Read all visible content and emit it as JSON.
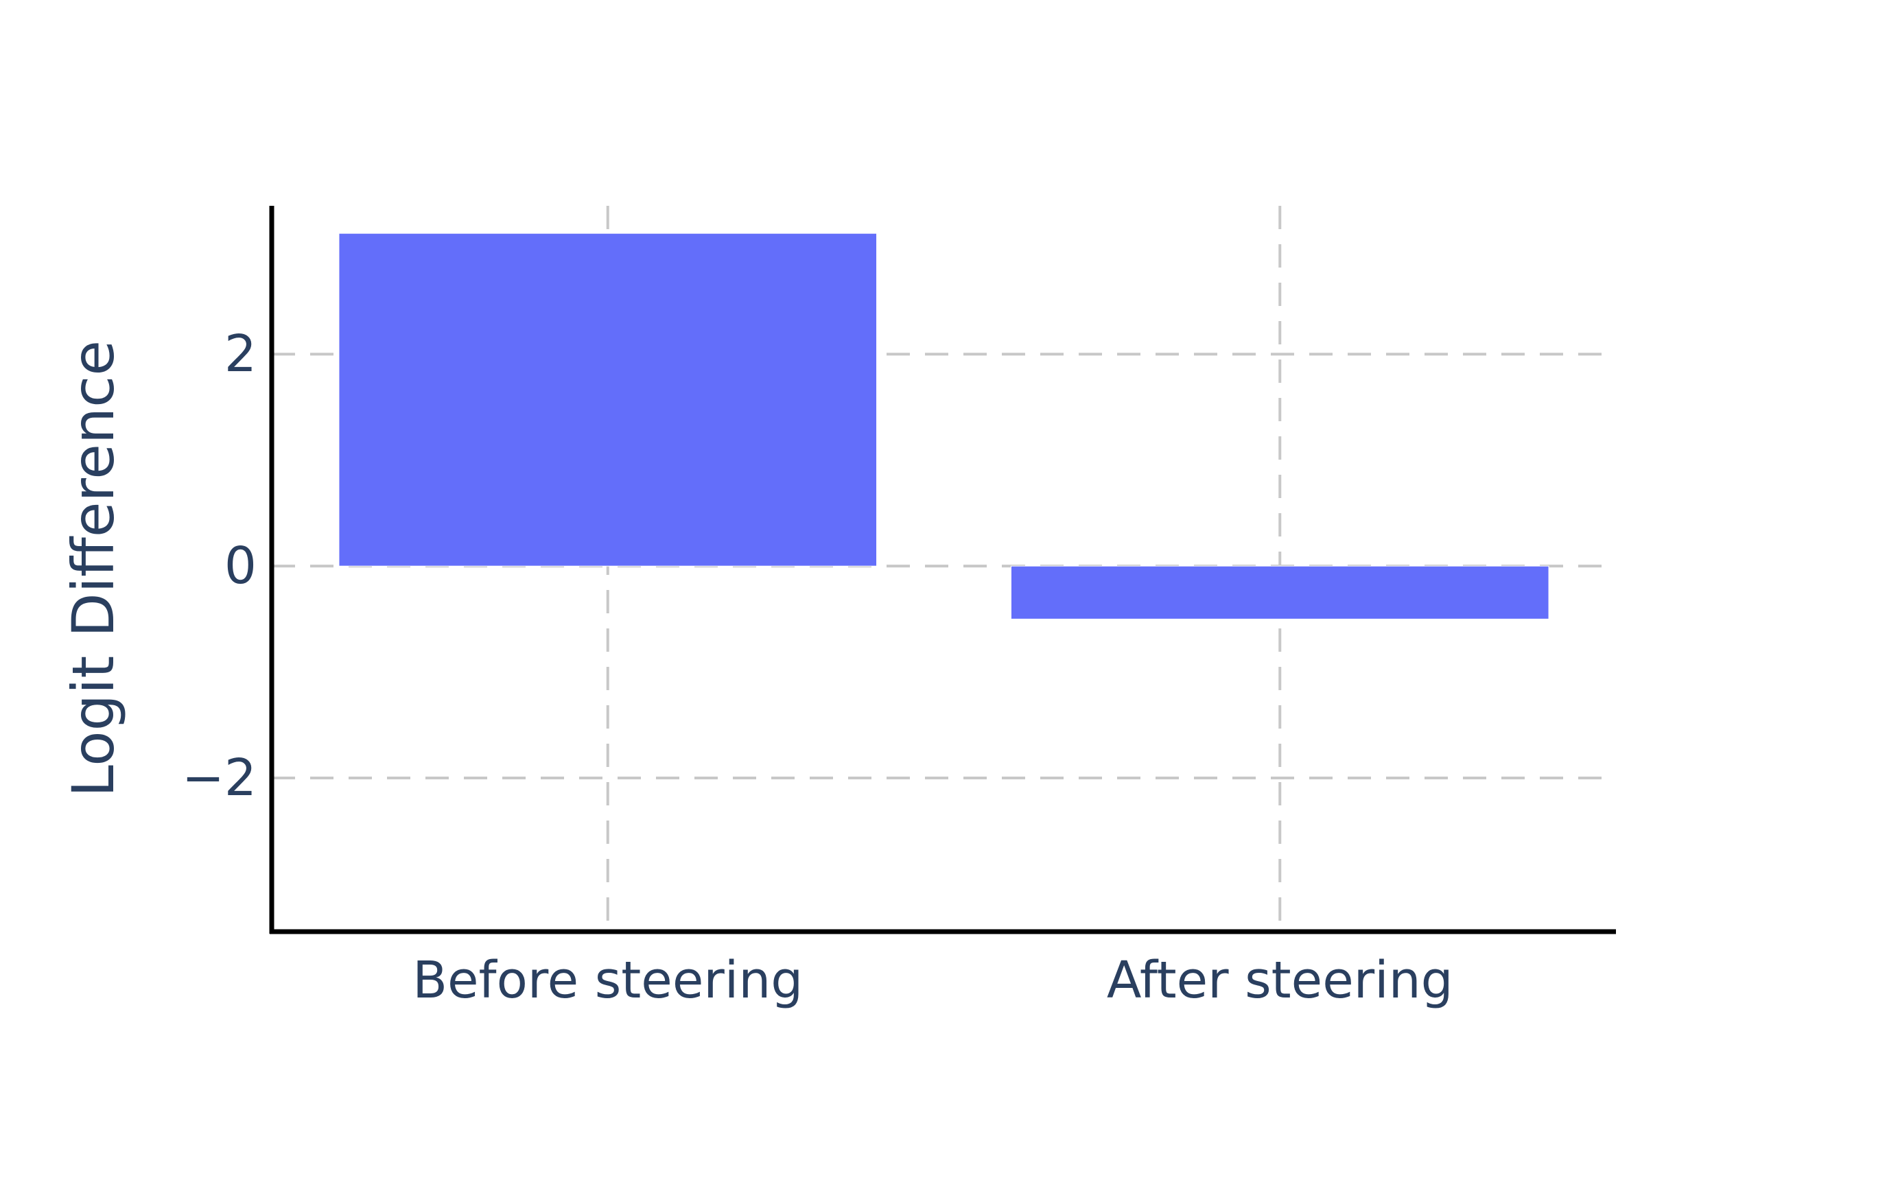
{
  "chart_data": {
    "type": "bar",
    "title": "",
    "xlabel": "",
    "ylabel": "Logit Difference",
    "categories": [
      "Before steering",
      "After steering"
    ],
    "values": [
      3.14,
      -0.5
    ],
    "ylim": [
      -3.45,
      3.4
    ],
    "yticks": [
      -2,
      0,
      2
    ],
    "ytick_labels": [
      "−2",
      "0",
      "2"
    ],
    "grid": true,
    "legend": "none"
  },
  "colors": {
    "bar": "#636efa",
    "text": "#2a3f5f",
    "grid": "#c8c8c8",
    "axis": "#000000",
    "background": "#ffffff"
  }
}
